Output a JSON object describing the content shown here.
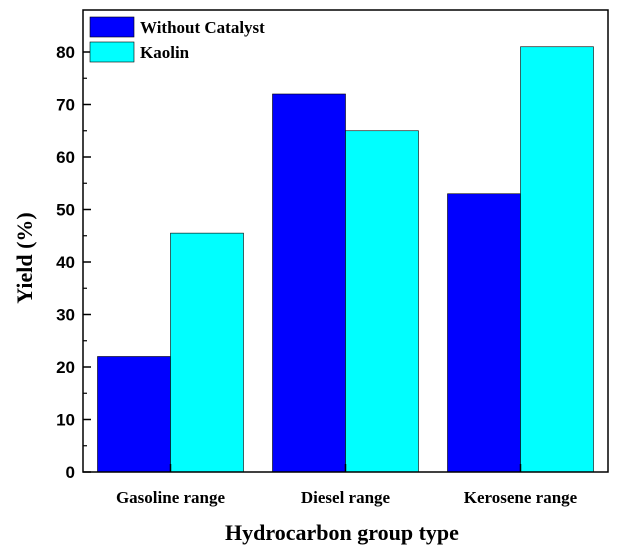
{
  "chart_data": {
    "type": "bar",
    "categories": [
      "Gasoline range",
      "Diesel range",
      "Kerosene range"
    ],
    "series": [
      {
        "name": "Without Catalyst",
        "color": "#0000ff",
        "values": [
          22,
          72,
          53
        ]
      },
      {
        "name": "Kaolin",
        "color": "#00ffff",
        "values": [
          45.5,
          65,
          81
        ]
      }
    ],
    "xlabel": "Hydrocarbon group type",
    "ylabel": "Yield (%)",
    "ylim": [
      0,
      88
    ],
    "yticks": [
      0,
      10,
      20,
      30,
      40,
      50,
      60,
      70,
      80
    ],
    "grid": false,
    "legend_position": "top-left"
  }
}
